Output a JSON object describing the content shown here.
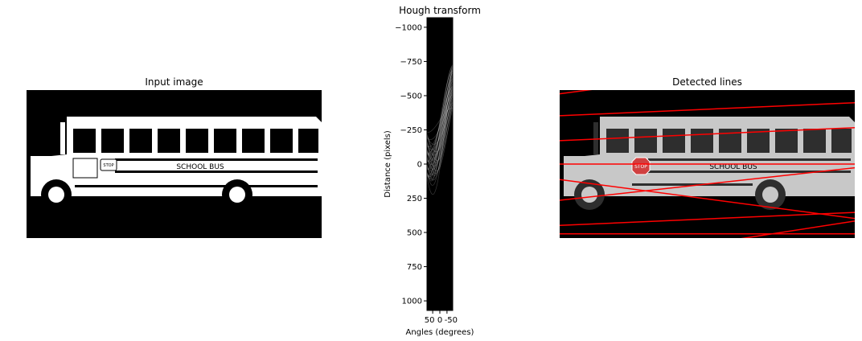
{
  "figure": {
    "panels": [
      {
        "id": "input",
        "title": "Input image"
      },
      {
        "id": "hough",
        "title": "Hough transform"
      },
      {
        "id": "detected",
        "title": "Detected lines"
      }
    ]
  },
  "bus": {
    "label": "SCHOOL BUS",
    "sign": "STOP"
  },
  "colors": {
    "background": "#ffffff",
    "image_black": "#000000",
    "bus_white": "#ffffff",
    "bus_gray": "#c8c8c8",
    "window_dark": "#2e2e2e",
    "line_red": "#ff0000"
  },
  "chart_data": {
    "type": "heatmap",
    "title": "Hough transform",
    "xlabel": "Angles (degrees)",
    "ylabel": "Distance (pixels)",
    "x_tick_labels": [
      "50",
      "0",
      "-50"
    ],
    "x_ticks": [
      50,
      0,
      -50
    ],
    "xlim": [
      90,
      -90
    ],
    "y_tick_labels": [
      "−1000",
      "−750",
      "−500",
      "−250",
      "0",
      "250",
      "500",
      "750",
      "1000"
    ],
    "y_ticks": [
      -1000,
      -750,
      -500,
      -250,
      0,
      250,
      500,
      750,
      1000
    ],
    "ylim": [
      -1070,
      1070
    ],
    "detected_lines": [
      {
        "angle": -86,
        "dist": -230
      },
      {
        "angle": -88,
        "dist": -200
      },
      {
        "angle": 84,
        "dist": -180
      },
      {
        "angle": -92,
        "dist": -110
      },
      {
        "angle": 88,
        "dist": -60
      },
      {
        "angle": 90,
        "dist": 0
      },
      {
        "angle": 85,
        "dist": 40
      },
      {
        "angle": -84,
        "dist": 70
      },
      {
        "angle": 88,
        "dist": 110
      },
      {
        "angle": 90,
        "dist": 140
      },
      {
        "angle": 83,
        "dist": 160
      }
    ]
  }
}
